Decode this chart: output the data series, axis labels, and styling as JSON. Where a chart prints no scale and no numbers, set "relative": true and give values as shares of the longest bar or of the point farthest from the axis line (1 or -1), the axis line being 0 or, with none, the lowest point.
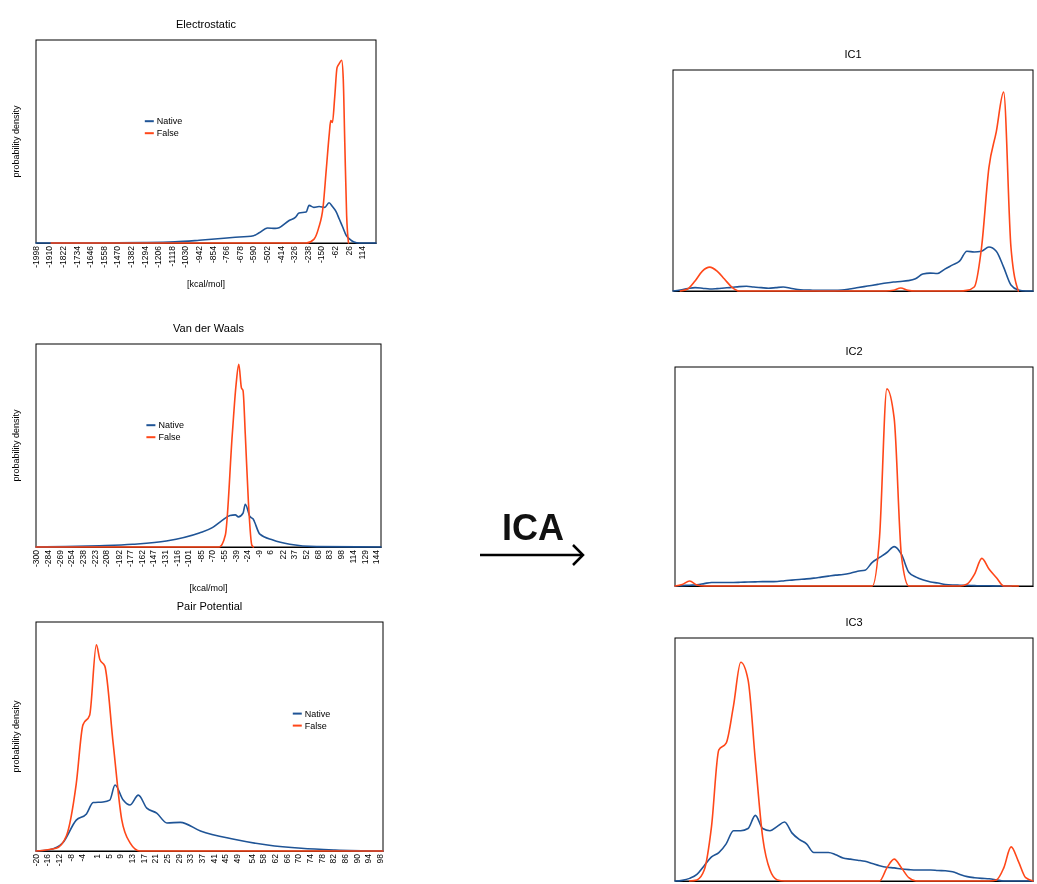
{
  "chart_data": [
    {
      "type": "line",
      "title": "Electrostatic",
      "xlabel": "[kcal/mol]",
      "ylabel": "probability density",
      "relative": true,
      "legend": "left",
      "xlim": [
        -1998,
        202
      ],
      "xticks": [
        -1998,
        -1910,
        -1822,
        -1734,
        -1646,
        -1558,
        -1470,
        -1382,
        -1294,
        -1206,
        -1118,
        -1030,
        -942,
        -854,
        -766,
        -678,
        -590,
        -502,
        -414,
        -326,
        -238,
        -150,
        -62,
        26,
        114
      ],
      "series": [
        {
          "name": "Native",
          "color": "#1f5496",
          "x": [
            -1998,
            -1646,
            -1300,
            -1100,
            -942,
            -727,
            -590,
            -554,
            -500,
            -450,
            -425,
            -360,
            -320,
            -296,
            -250,
            -231,
            -200,
            -166,
            -130,
            -102,
            -80,
            -58,
            -35,
            -15,
            10,
            28,
            60,
            93,
            202
          ],
          "values": [
            0,
            0,
            0.002,
            0.006,
            0.015,
            0.03,
            0.04,
            0.056,
            0.082,
            0.08,
            0.084,
            0.123,
            0.14,
            0.164,
            0.17,
            0.206,
            0.195,
            0.2,
            0.195,
            0.22,
            0.2,
            0.174,
            0.13,
            0.09,
            0.04,
            0.024,
            0.005,
            0,
            0
          ]
        },
        {
          "name": "False",
          "color": "#ff4719",
          "x": [
            -1900,
            -250,
            -200,
            -170,
            -140,
            -120,
            -100,
            -91,
            -80,
            -65,
            -50,
            -37,
            -20,
            -10,
            0,
            12,
            24
          ],
          "values": [
            0,
            0,
            0.02,
            0.08,
            0.2,
            0.4,
            0.6,
            0.67,
            0.66,
            0.8,
            0.96,
            0.98,
            1.0,
            0.9,
            0.55,
            0.15,
            0
          ]
        }
      ]
    },
    {
      "type": "line",
      "title": "Van der Waals",
      "xlabel": "[kcal/mol]",
      "ylabel": "probability density",
      "relative": true,
      "legend": "left",
      "xlim": [
        -300,
        150
      ],
      "xticks": [
        -300,
        -284,
        -269,
        -254,
        -238,
        -223,
        -208,
        -192,
        -177,
        -162,
        -147,
        -131,
        -116,
        -101,
        -85,
        -70,
        -55,
        -39,
        -24,
        -9,
        6,
        22,
        37,
        52,
        68,
        83,
        98,
        114,
        129,
        144
      ],
      "series": [
        {
          "name": "Native",
          "color": "#1f5496",
          "x": [
            -300,
            -261,
            -217,
            -174,
            -130,
            -87,
            -70,
            -58,
            -47,
            -40,
            -36,
            -30,
            -27,
            -21,
            -17,
            -8,
            9,
            31,
            66,
            150
          ],
          "values": [
            0,
            0.002,
            0.007,
            0.015,
            0.033,
            0.077,
            0.106,
            0.143,
            0.172,
            0.176,
            0.165,
            0.185,
            0.234,
            0.167,
            0.154,
            0.07,
            0.038,
            0.015,
            0.002,
            0
          ]
        },
        {
          "name": "False",
          "color": "#ff4719",
          "x": [
            -300,
            -61,
            -53,
            -44,
            -39,
            -35.5,
            -32,
            -30,
            -27,
            -23,
            -18.5,
            -16.5
          ],
          "values": [
            0,
            0,
            0.066,
            0.615,
            0.89,
            1.0,
            0.87,
            0.857,
            0.615,
            0.25,
            0.01,
            0
          ]
        }
      ]
    },
    {
      "type": "line",
      "title": "Pair Potential",
      "ylabel": "probability density",
      "relative": true,
      "legend": "right",
      "xlim": [
        -20,
        99
      ],
      "xticks": [
        -20,
        -16,
        -12,
        -8,
        -4,
        1,
        5,
        9,
        13,
        17,
        21,
        25,
        29,
        33,
        37,
        41,
        45,
        49,
        54,
        58,
        62,
        66,
        70,
        74,
        78,
        82,
        86,
        90,
        94,
        98
      ],
      "series": [
        {
          "name": "Native",
          "color": "#1f5496",
          "x": [
            -20,
            -15.4,
            -10.8,
            -6.2,
            -2.7,
            -0.4,
            3,
            5.3,
            7.1,
            9.9,
            12.2,
            15.1,
            18,
            21.4,
            24.9,
            29.5,
            36.4,
            47.9,
            59.4,
            71,
            82.5,
            99
          ],
          "values": [
            0,
            0.006,
            0.04,
            0.15,
            0.18,
            0.235,
            0.238,
            0.247,
            0.32,
            0.247,
            0.223,
            0.271,
            0.208,
            0.184,
            0.136,
            0.139,
            0.097,
            0.057,
            0.029,
            0.013,
            0.005,
            0
          ]
        },
        {
          "name": "False",
          "color": "#ff4719",
          "x": [
            -20,
            -13.1,
            -9.6,
            -6.2,
            -3.9,
            -1.6,
            0.7,
            1.9,
            3.6,
            6.5,
            9.4,
            12.2,
            15.7,
            99
          ],
          "values": [
            0,
            0.013,
            0.073,
            0.326,
            0.612,
            0.659,
            1.0,
            0.929,
            0.897,
            0.517,
            0.152,
            0.041,
            0,
            0
          ]
        }
      ]
    },
    {
      "type": "line",
      "title": "IC1",
      "relative": true,
      "categories": [
        null,
        null,
        null,
        null,
        null,
        null,
        null,
        null,
        null,
        null,
        null,
        null,
        null,
        null,
        null,
        null,
        null,
        null,
        null,
        null,
        null,
        null,
        null,
        null,
        null,
        null,
        null,
        null,
        null,
        null,
        null,
        null,
        null,
        null,
        null,
        null,
        null,
        null,
        null,
        null,
        null,
        null,
        null,
        null,
        null,
        null,
        null,
        null,
        null,
        null
      ],
      "series": [
        {
          "color": "#1f5496",
          "values": [
            0,
            0.005,
            0.012,
            0.017,
            0.014,
            0.01,
            0.012,
            0.015,
            0.018,
            0.022,
            0.024,
            0.02,
            0.017,
            0.014,
            0.017,
            0.02,
            0.014,
            0.007,
            0.005,
            0.004,
            0.003,
            0.003,
            0.003,
            0.005,
            0.01,
            0.016,
            0.022,
            0.028,
            0.034,
            0.04,
            0.045,
            0.048,
            0.052,
            0.062,
            0.085,
            0.09,
            0.088,
            0.11,
            0.13,
            0.15,
            0.2,
            0.196,
            0.2,
            0.221,
            0.2,
            0.12,
            0.03,
            0.005,
            0,
            0
          ]
        },
        {
          "color": "#ff4719",
          "values": [
            null,
            0,
            0.01,
            0.05,
            0.1,
            0.12,
            0.1,
            0.06,
            0.02,
            0,
            0,
            0,
            0,
            0,
            0,
            0,
            0,
            0,
            null,
            null,
            null,
            null,
            null,
            0,
            0,
            0,
            0,
            0,
            0,
            0,
            0.004,
            0.015,
            0.003,
            0,
            0,
            0,
            0,
            0,
            0,
            0,
            0.003,
            0.02,
            0.22,
            0.62,
            0.8,
            1.0,
            0.22,
            0,
            null,
            null
          ]
        }
      ]
    },
    {
      "type": "line",
      "title": "IC2",
      "relative": true,
      "categories": [
        null,
        null,
        null,
        null,
        null,
        null,
        null,
        null,
        null,
        null,
        null,
        null,
        null,
        null,
        null,
        null,
        null,
        null,
        null,
        null,
        null,
        null,
        null,
        null,
        null,
        null,
        null,
        null,
        null,
        null,
        null,
        null,
        null,
        null,
        null,
        null,
        null,
        null,
        null,
        null,
        null,
        null,
        null,
        null,
        null,
        null,
        null,
        null,
        null,
        null
      ],
      "series": [
        {
          "color": "#1f5496",
          "values": [
            0,
            0.002,
            0.004,
            0.006,
            0.012,
            0.018,
            0.018,
            0.018,
            0.018,
            0.019,
            0.02,
            0.021,
            0.022,
            0.022,
            0.023,
            0.027,
            0.03,
            0.033,
            0.036,
            0.04,
            0.045,
            0.05,
            0.055,
            0.058,
            0.065,
            0.075,
            0.08,
            0.12,
            0.145,
            0.17,
            0.2,
            0.16,
            0.07,
            0.045,
            0.03,
            0.02,
            0.015,
            0.008,
            0.005,
            0.004,
            0.003,
            0.002,
            0.001,
            0.001,
            0,
            0,
            0,
            null,
            null,
            null
          ]
        },
        {
          "color": "#ff4719",
          "values": [
            0,
            0.008,
            0.025,
            0.005,
            0,
            0,
            0,
            0,
            0,
            0,
            0,
            0,
            0,
            0,
            0,
            0,
            0,
            0,
            0,
            0,
            0,
            0,
            0,
            0,
            0,
            0,
            0,
            0,
            0.25,
            1.0,
            0.85,
            0.15,
            0,
            0,
            0,
            0,
            0,
            0,
            0,
            0,
            0.01,
            0.06,
            0.14,
            0.085,
            0.042,
            0,
            0,
            0,
            null,
            null
          ]
        }
      ]
    },
    {
      "type": "line",
      "title": "IC3",
      "relative": true,
      "categories": [
        null,
        null,
        null,
        null,
        null,
        null,
        null,
        null,
        null,
        null,
        null,
        null,
        null,
        null,
        null,
        null,
        null,
        null,
        null,
        null,
        null,
        null,
        null,
        null,
        null,
        null,
        null,
        null,
        null,
        null,
        null,
        null,
        null,
        null,
        null,
        null,
        null,
        null,
        null,
        null,
        null,
        null,
        null,
        null,
        null,
        null,
        null,
        null,
        null,
        null
      ],
      "series": [
        {
          "color": "#1f5496",
          "values": [
            0,
            0.003,
            0.012,
            0.03,
            0.07,
            0.11,
            0.13,
            0.17,
            0.23,
            0.23,
            0.24,
            0.3,
            0.24,
            0.23,
            0.25,
            0.27,
            0.22,
            0.19,
            0.17,
            0.13,
            0.13,
            0.13,
            0.12,
            0.105,
            0.1,
            0.095,
            0.09,
            0.08,
            0.07,
            0.063,
            0.06,
            0.055,
            0.052,
            0.05,
            0.05,
            0.05,
            0.048,
            0.047,
            0.042,
            0.03,
            0.02,
            0.015,
            0.012,
            0.01,
            0.005,
            0,
            0,
            0,
            0,
            0
          ]
        },
        {
          "color": "#ff4719",
          "values": [
            null,
            null,
            0,
            0.005,
            0.05,
            0.25,
            0.6,
            0.63,
            0.8,
            1.0,
            0.92,
            0.55,
            0.2,
            0.05,
            0.005,
            0,
            0,
            0,
            0,
            0,
            0,
            0,
            0,
            0,
            0,
            0,
            0,
            0,
            0,
            0.06,
            0.1,
            0.06,
            0.015,
            0,
            0,
            0,
            0,
            0,
            0,
            0,
            0,
            0,
            0,
            0,
            0.005,
            0.06,
            0.156,
            0.09,
            0.015,
            0
          ]
        }
      ]
    },
    {
      "type": "other",
      "title": "ICA"
    }
  ]
}
